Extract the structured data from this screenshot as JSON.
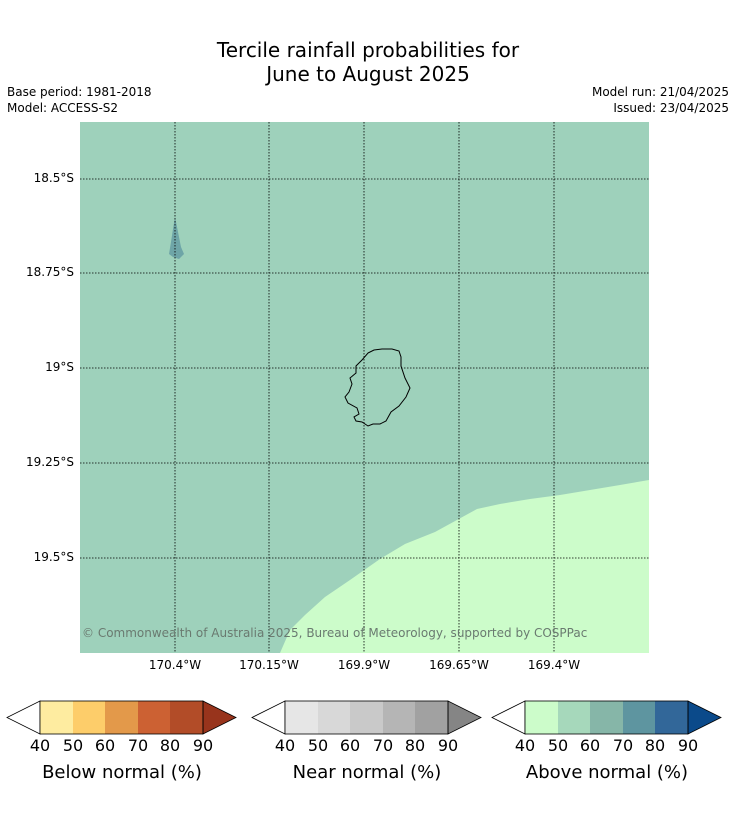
{
  "title_line1": "Tercile rainfall probabilities for",
  "title_line2": "June to August 2025",
  "meta": {
    "base_period": "Base period: 1981-2018",
    "model": "Model: ACCESS-S2",
    "model_run": "Model run: 21/04/2025",
    "issued": "Issued: 23/04/2025"
  },
  "map": {
    "lat_labels": [
      "18.5°S",
      "18.75°S",
      "19°S",
      "19.25°S",
      "19.5°S"
    ],
    "lon_labels": [
      "170.4°W",
      "170.15°W",
      "169.9°W",
      "169.65°W",
      "169.4°W"
    ],
    "copyright": "© Commonwealth of Australia 2025, Bureau of Meteorology, supported by COSPPac",
    "colors": {
      "above_50": "#9ed1bb",
      "above_40": "#ccfcca",
      "above_60": "#5e95a0",
      "coast": "#000000"
    }
  },
  "colorbars": [
    {
      "label": "Below normal (%)",
      "ticks": [
        "40",
        "50",
        "60",
        "70",
        "80",
        "90"
      ],
      "colors": [
        "#ffffff",
        "#feeca0",
        "#fdcd6a",
        "#e3994a",
        "#cc6133",
        "#b24c28",
        "#98341c"
      ]
    },
    {
      "label": "Near normal (%)",
      "ticks": [
        "40",
        "50",
        "60",
        "70",
        "80",
        "90"
      ],
      "colors": [
        "#ffffff",
        "#e6e6e6",
        "#d8d8d8",
        "#c9c9c9",
        "#b5b5b5",
        "#a1a1a1",
        "#858585"
      ]
    },
    {
      "label": "Above normal (%)",
      "ticks": [
        "40",
        "50",
        "60",
        "70",
        "80",
        "90"
      ],
      "colors": [
        "#ffffff",
        "#ccfcca",
        "#a6d8bb",
        "#86b6a8",
        "#5e95a0",
        "#326799",
        "#0b4a8a"
      ]
    }
  ]
}
